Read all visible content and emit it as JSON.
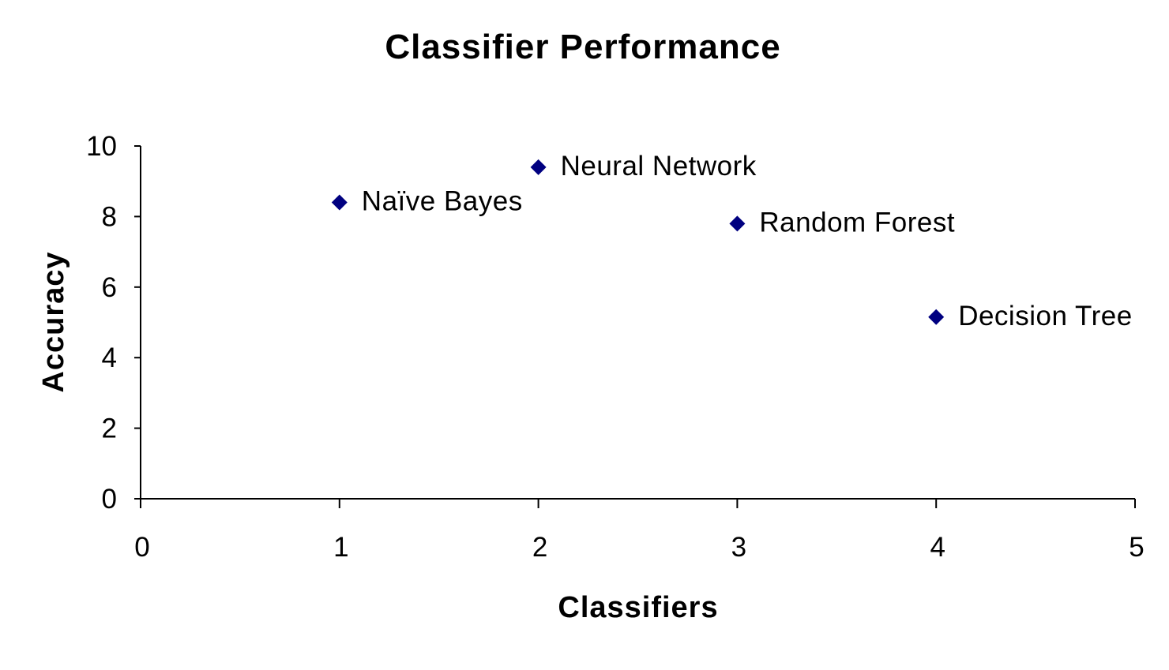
{
  "chart_data": {
    "type": "scatter",
    "title": "Classifier Performance",
    "xlabel": "Classifiers",
    "ylabel": "Accuracy",
    "xlim": [
      0,
      5
    ],
    "ylim": [
      0,
      10
    ],
    "xticks": [
      0,
      1,
      2,
      3,
      4,
      5
    ],
    "yticks": [
      0,
      2,
      4,
      6,
      8,
      10
    ],
    "grid": false,
    "legend": "none",
    "marker": "diamond",
    "marker_color": "#000080",
    "points": [
      {
        "x": 1,
        "y": 8.4,
        "label": "Naïve Bayes"
      },
      {
        "x": 2,
        "y": 9.4,
        "label": "Neural Network"
      },
      {
        "x": 3,
        "y": 7.8,
        "label": "Random Forest"
      },
      {
        "x": 4,
        "y": 5.15,
        "label": "Decision Tree"
      }
    ]
  }
}
